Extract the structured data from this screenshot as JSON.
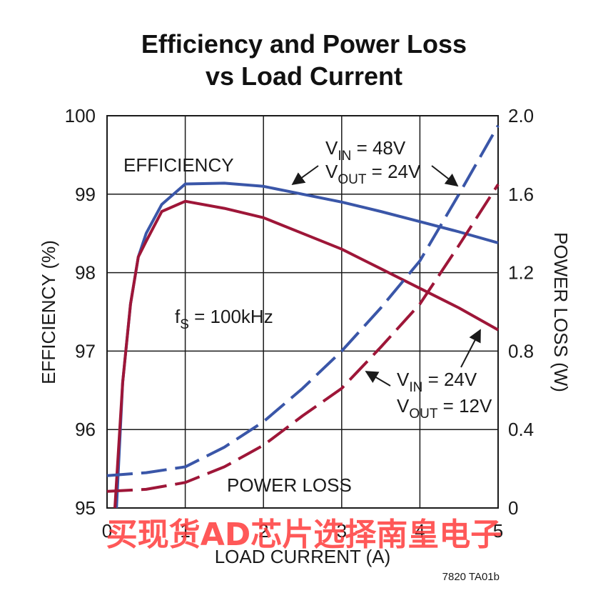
{
  "chart_data": {
    "type": "line",
    "title": [
      "Efficiency and Power Loss",
      "vs Load Current"
    ],
    "xlabel": "LOAD CURRENT (A)",
    "ylabel_left": "EFFICIENCY (%)",
    "ylabel_right": "POWER LOSS (W)",
    "xlim": [
      0,
      5
    ],
    "ylim_left": [
      95,
      100
    ],
    "ylim_right": [
      0,
      2.0
    ],
    "x_ticks": [
      "0",
      "1",
      "2",
      "3",
      "4",
      "5"
    ],
    "y_ticks_left": [
      "95",
      "96",
      "97",
      "98",
      "99",
      "100"
    ],
    "y_ticks_right": [
      "0",
      "0.4",
      "0.8",
      "1.2",
      "1.6",
      "2.0"
    ],
    "grid": true,
    "colors": {
      "blue": "#3a56a8",
      "red": "#9e1638"
    },
    "series": [
      {
        "axis": "left",
        "style": "solid",
        "color": "#3a56a8",
        "x": [
          0.12,
          0.2,
          0.3,
          0.4,
          0.5,
          0.7,
          1.0,
          1.5,
          2.0,
          2.5,
          3.0,
          3.5,
          4.0,
          4.5,
          5.0
        ],
        "y": [
          95.0,
          96.6,
          97.6,
          98.2,
          98.5,
          98.87,
          99.13,
          99.14,
          99.1,
          99.0,
          98.9,
          98.78,
          98.65,
          98.52,
          98.38
        ]
      },
      {
        "axis": "left",
        "style": "solid",
        "color": "#9e1638",
        "x": [
          0.1,
          0.2,
          0.3,
          0.4,
          0.5,
          0.7,
          1.0,
          1.5,
          2.0,
          2.5,
          3.0,
          3.5,
          4.0,
          4.5,
          5.0
        ],
        "y": [
          95.0,
          96.6,
          97.6,
          98.2,
          98.4,
          98.78,
          98.91,
          98.82,
          98.7,
          98.5,
          98.3,
          98.05,
          97.8,
          97.55,
          97.27
        ]
      },
      {
        "axis": "right",
        "style": "dashed",
        "color": "#3a56a8",
        "x": [
          0,
          0.5,
          1.0,
          1.5,
          2.0,
          2.5,
          3.0,
          3.5,
          4.0,
          4.5,
          5.0
        ],
        "y": [
          0.165,
          0.18,
          0.21,
          0.31,
          0.44,
          0.61,
          0.8,
          1.02,
          1.26,
          1.6,
          1.95
        ]
      },
      {
        "axis": "right",
        "style": "dashed",
        "color": "#9e1638",
        "x": [
          0,
          0.5,
          1.0,
          1.5,
          2.0,
          2.5,
          3.0,
          3.5,
          4.0,
          4.5,
          5.0
        ],
        "y": [
          0.085,
          0.095,
          0.13,
          0.21,
          0.32,
          0.47,
          0.61,
          0.82,
          1.04,
          1.34,
          1.65
        ]
      }
    ],
    "annotations": {
      "efficiency": "EFFICIENCY",
      "power_loss": "POWER LOSS",
      "fs_main": "f",
      "fs_sub": "S",
      "fs_value": " = 100kHz",
      "vin48_main": "V",
      "vin48_sub": "IN",
      "vin48_value": " = 48V",
      "vout24_main": "V",
      "vout24_sub": "OUT",
      "vout24_value": " = 24V",
      "vin24_main": "V",
      "vin24_sub": "IN",
      "vin24_value": " = 24V",
      "vout12_main": "V",
      "vout12_sub": "OUT",
      "vout12_value": " = 12V"
    },
    "figure_id": "7820 TA01b"
  },
  "watermark": "买现货AD芯片选择南皇电子"
}
